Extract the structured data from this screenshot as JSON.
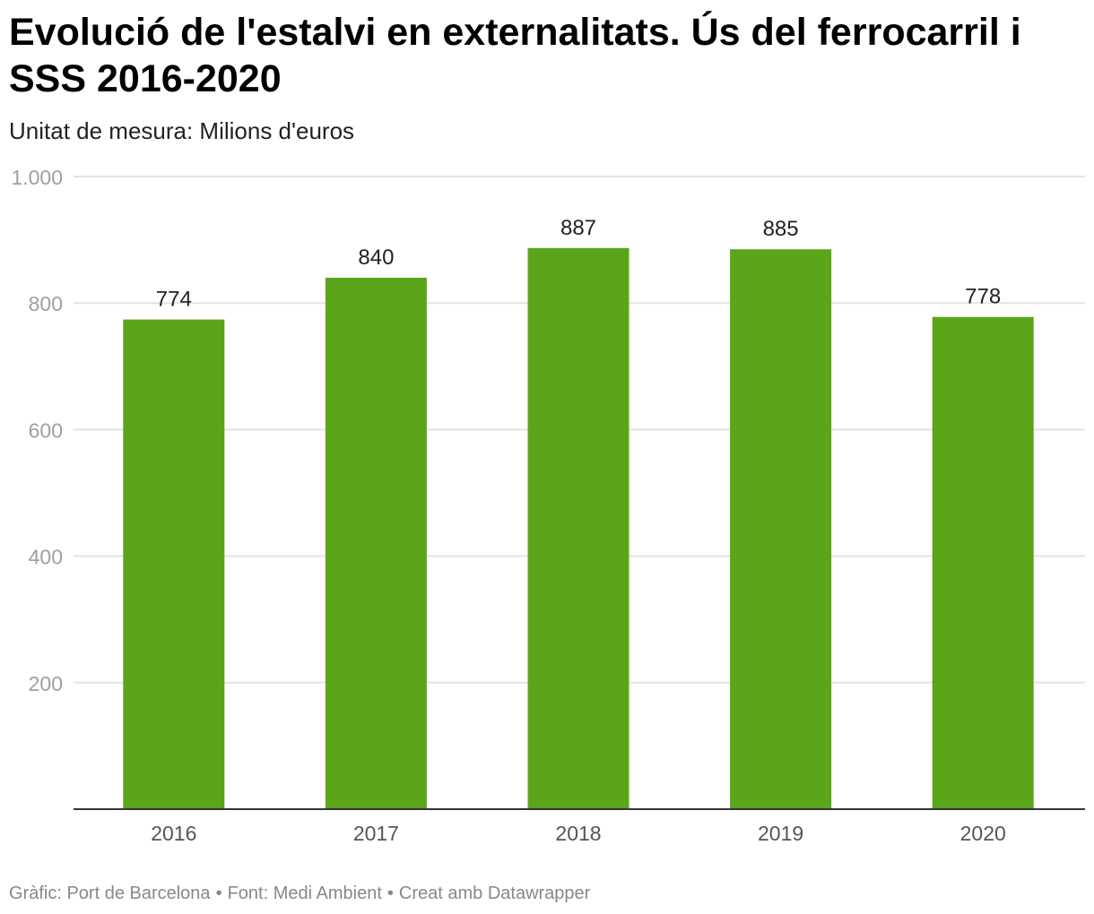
{
  "header": {
    "title": "Evolució de l'estalvi en externalitats. Ús del ferrocarril i SSS 2016-2020",
    "subtitle": "Unitat de mesura: Milions d'euros"
  },
  "footer": {
    "graphic": "Gràfic: Port de Barcelona",
    "source": "Font: Medi Ambient",
    "credit": "Creat amb Datawrapper",
    "separator": "•"
  },
  "colors": {
    "bar": "#5aa519",
    "grid": "#e3e3e3",
    "axis": "#333333",
    "tick_label": "#a0a0a0",
    "category_label": "#555555",
    "value_label": "#222222"
  },
  "chart_data": {
    "type": "bar",
    "title": "Evolució de l'estalvi en externalitats. Ús del ferrocarril i SSS 2016-2020",
    "subtitle": "Unitat de mesura: Milions d'euros",
    "xlabel": "",
    "ylabel": "",
    "categories": [
      "2016",
      "2017",
      "2018",
      "2019",
      "2020"
    ],
    "values": [
      774,
      840,
      887,
      885,
      778
    ],
    "value_labels": [
      "774",
      "840",
      "887",
      "885",
      "778"
    ],
    "ylim": [
      0,
      1000
    ],
    "yticks": [
      200,
      400,
      600,
      800,
      1000
    ],
    "ytick_labels": [
      "200",
      "400",
      "600",
      "800",
      "1.000"
    ],
    "grid": true,
    "legend": "none"
  }
}
